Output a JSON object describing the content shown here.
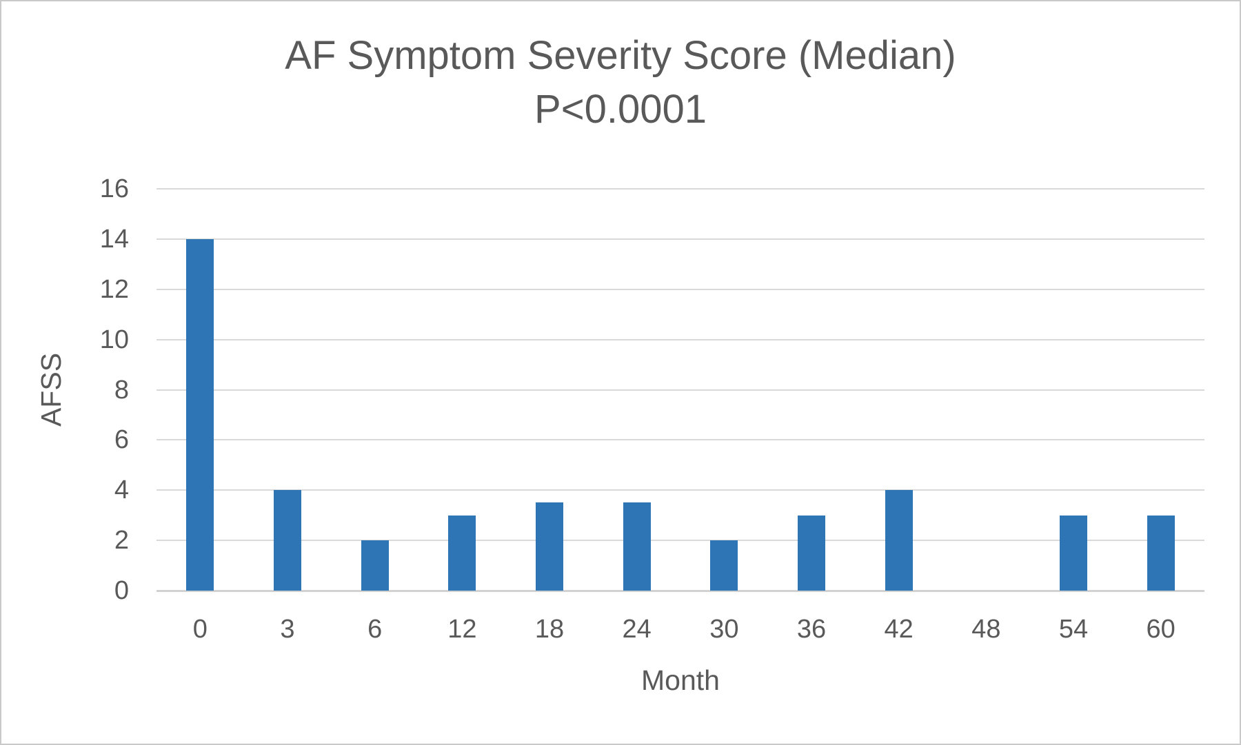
{
  "colors": {
    "bar": "#2e75b6",
    "gridline": "#d9d9d9",
    "axis_line": "#d2d2d2",
    "text": "#595959",
    "frame": "#c9c9c9",
    "background": "#ffffff"
  },
  "chart_data": {
    "type": "bar",
    "title": "AF Symptom Severity Score (Median)",
    "subtitle": "P<0.0001",
    "xlabel": "Month",
    "ylabel": "AFSS",
    "categories": [
      "0",
      "3",
      "6",
      "12",
      "18",
      "24",
      "30",
      "36",
      "42",
      "48",
      "54",
      "60"
    ],
    "values": [
      14,
      4,
      2,
      3,
      3.5,
      3.5,
      2,
      3,
      4,
      0,
      3,
      3
    ],
    "ylim": [
      0,
      16
    ],
    "yticks": [
      0,
      2,
      4,
      6,
      8,
      10,
      12,
      14,
      16
    ],
    "grid": true,
    "legend": false,
    "gap_note": "category 48 has no visible bar (value 0)"
  }
}
